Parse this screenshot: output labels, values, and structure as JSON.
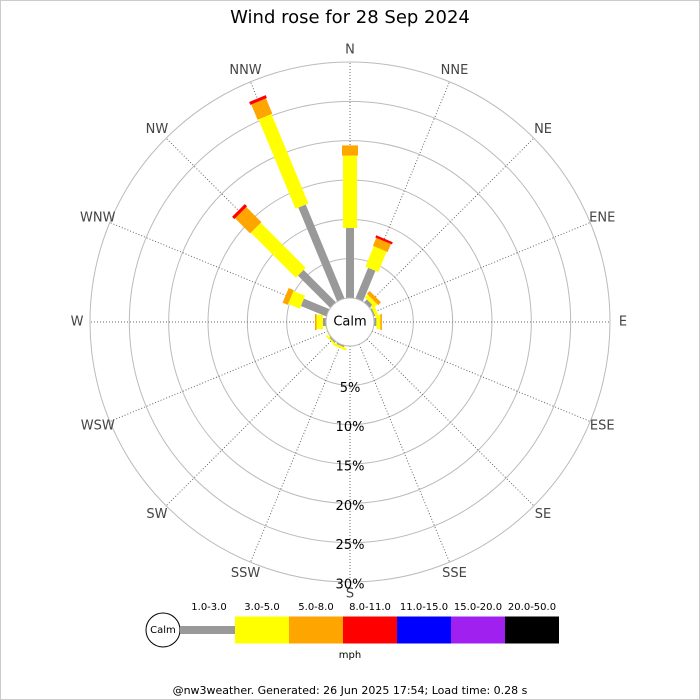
{
  "chart_data": {
    "type": "windrose",
    "title": "Wind rose for 28 Sep 2024",
    "directions": [
      "N",
      "NNE",
      "NE",
      "ENE",
      "E",
      "ESE",
      "SE",
      "SSE",
      "S",
      "SSW",
      "SW",
      "WSW",
      "W",
      "WNW",
      "NW",
      "NNW"
    ],
    "series": [
      {
        "name": "1.0-3.0",
        "color": "#999999",
        "values": [
          8.9,
          4.2,
          0.5,
          0.2,
          0.3,
          0,
          0,
          0,
          0,
          0.2,
          0.2,
          0,
          0.4,
          3.5,
          5.8,
          12.9
        ]
      },
      {
        "name": "3.0-5.0",
        "color": "#ffff00",
        "values": [
          9.2,
          2.8,
          0.5,
          0.4,
          0.5,
          0,
          0,
          0,
          0,
          0.3,
          0.2,
          0.1,
          0.8,
          1.6,
          8.1,
          12.3
        ]
      },
      {
        "name": "5.0-8.0",
        "color": "#ffa500",
        "values": [
          1.3,
          1.1,
          0.5,
          0,
          0.2,
          0,
          0,
          0,
          0,
          0,
          0,
          0,
          0.2,
          0.7,
          2.7,
          2.1
        ]
      },
      {
        "name": "8.0-11.0",
        "color": "#ff0000",
        "values": [
          0,
          0.3,
          0,
          0,
          0,
          0,
          0,
          0,
          0,
          0,
          0,
          0,
          0,
          0,
          0.4,
          0.4
        ]
      },
      {
        "name": "11.0-15.0",
        "color": "#0000ff",
        "values": [
          0,
          0,
          0,
          0,
          0,
          0,
          0,
          0,
          0,
          0,
          0,
          0,
          0,
          0,
          0,
          0
        ]
      },
      {
        "name": "15.0-20.0",
        "color": "#a020f0",
        "values": [
          0,
          0,
          0,
          0,
          0,
          0,
          0,
          0,
          0,
          0,
          0,
          0,
          0,
          0,
          0,
          0
        ]
      },
      {
        "name": "20.0-50.0",
        "color": "#000000",
        "values": [
          0,
          0,
          0,
          0,
          0,
          0,
          0,
          0,
          0,
          0,
          0,
          0,
          0,
          0,
          0,
          0
        ]
      }
    ],
    "rlim": [
      0,
      30
    ],
    "rticks": [
      {
        "value": 5,
        "label": "5%"
      },
      {
        "value": 10,
        "label": "10%"
      },
      {
        "value": 15,
        "label": "15%"
      },
      {
        "value": 20,
        "label": "20%"
      },
      {
        "value": 25,
        "label": "25%"
      },
      {
        "value": 30,
        "label": "30%"
      }
    ],
    "calm_label": "Calm",
    "legend_title": "mph",
    "footer": "@nw3weather. Generated: 26 Jun 2025 17:54; Load time: 0.28 s"
  }
}
